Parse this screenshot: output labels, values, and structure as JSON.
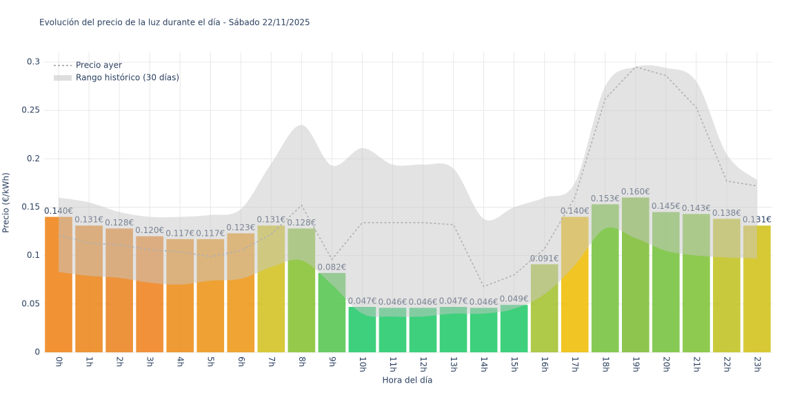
{
  "chart_data": {
    "type": "bar",
    "title": "Evolución del precio de la luz durante el día - Sábado 22/11/2025",
    "x_label": "Hora del día",
    "y_label": "Precio (€/kWh)",
    "categories": [
      "0h",
      "1h",
      "2h",
      "3h",
      "4h",
      "5h",
      "6h",
      "7h",
      "8h",
      "9h",
      "10h",
      "11h",
      "12h",
      "13h",
      "14h",
      "15h",
      "16h",
      "17h",
      "18h",
      "19h",
      "20h",
      "21h",
      "22h",
      "23h"
    ],
    "values": [
      0.14,
      0.131,
      0.128,
      0.12,
      0.117,
      0.117,
      0.123,
      0.131,
      0.128,
      0.082,
      0.047,
      0.046,
      0.046,
      0.047,
      0.046,
      0.049,
      0.091,
      0.14,
      0.153,
      0.16,
      0.145,
      0.143,
      0.138,
      0.131
    ],
    "value_labels": [
      "0.140€",
      "0.131€",
      "0.128€",
      "0.120€",
      "0.117€",
      "0.117€",
      "0.123€",
      "0.131€",
      "0.128€",
      "0.082€",
      "0.047€",
      "0.046€",
      "0.046€",
      "0.047€",
      "0.046€",
      "0.049€",
      "0.091€",
      "0.140€",
      "0.153€",
      "0.160€",
      "0.145€",
      "0.143€",
      "0.138€",
      "0.131€"
    ],
    "colors": [
      "#f08a24",
      "#ec8c26",
      "#ec8a2a",
      "#f0892a",
      "#ee9324",
      "#ee9a22",
      "#ee9c22",
      "#d4c42a",
      "#8cc43c",
      "#5cc857",
      "#2ecc71",
      "#2ecc71",
      "#2ecc71",
      "#2ecc71",
      "#2ecc71",
      "#2ecc71",
      "#a8c43a",
      "#f0c010",
      "#7cc646",
      "#84c040",
      "#7cc646",
      "#84c640",
      "#c4c42c",
      "#d4c424"
    ],
    "series": [
      {
        "name": "Precio ayer",
        "type": "line",
        "color": "#999999",
        "values": [
          0.121,
          0.113,
          0.111,
          0.106,
          0.104,
          0.099,
          0.105,
          0.122,
          0.152,
          0.096,
          0.134,
          0.134,
          0.134,
          0.132,
          0.068,
          0.08,
          0.107,
          0.16,
          0.262,
          0.295,
          0.286,
          0.253,
          0.177,
          0.172
        ]
      },
      {
        "name": "Rango histórico (30 días)",
        "type": "band",
        "color": "#c8c8c8",
        "upper": [
          0.16,
          0.155,
          0.145,
          0.14,
          0.14,
          0.142,
          0.148,
          0.195,
          0.235,
          0.193,
          0.211,
          0.194,
          0.194,
          0.19,
          0.138,
          0.15,
          0.16,
          0.175,
          0.275,
          0.295,
          0.294,
          0.28,
          0.205,
          0.178
        ],
        "lower": [
          0.083,
          0.079,
          0.077,
          0.072,
          0.07,
          0.074,
          0.076,
          0.088,
          0.095,
          0.07,
          0.04,
          0.037,
          0.037,
          0.04,
          0.04,
          0.045,
          0.06,
          0.09,
          0.128,
          0.118,
          0.105,
          0.1,
          0.098,
          0.097
        ]
      }
    ],
    "ylim": [
      0,
      0.31
    ],
    "yticks": [
      0,
      0.05,
      0.1,
      0.15,
      0.2,
      0.25,
      0.3
    ],
    "grid": true,
    "legend": "top-left"
  }
}
